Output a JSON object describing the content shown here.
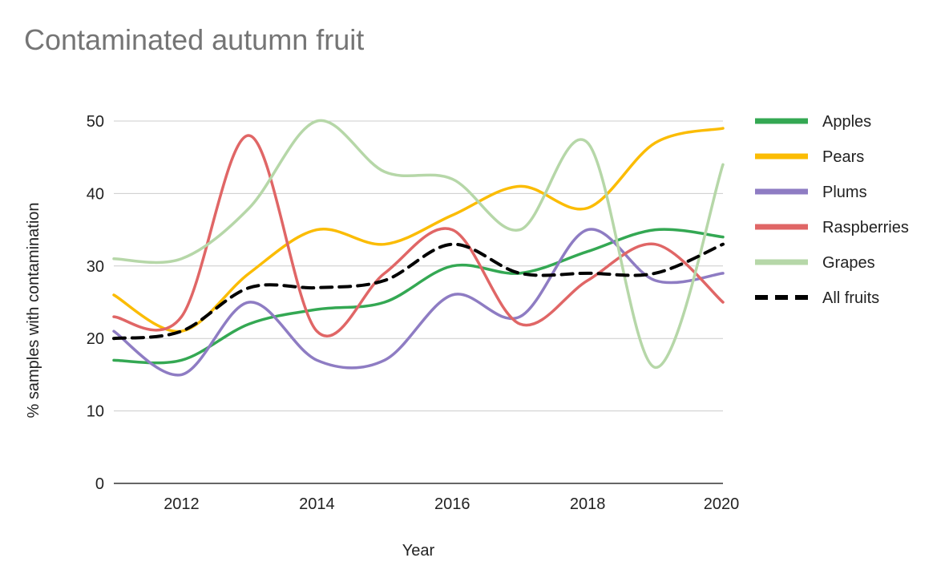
{
  "chart_data": {
    "type": "line",
    "title": "Contaminated autumn fruit",
    "xlabel": "Year",
    "ylabel": "% samples with contamination",
    "x": [
      2011,
      2012,
      2013,
      2014,
      2015,
      2016,
      2017,
      2018,
      2019,
      2020
    ],
    "xlim": [
      2011,
      2020
    ],
    "ylim": [
      0,
      50
    ],
    "xticks": [
      2012,
      2014,
      2016,
      2018,
      2020
    ],
    "yticks": [
      0,
      10,
      20,
      30,
      40,
      50
    ],
    "grid": true,
    "legend_position": "right",
    "series": [
      {
        "name": "Apples",
        "color": "#34a853",
        "dash": false,
        "values": [
          17,
          17,
          22,
          24,
          25,
          30,
          29,
          32,
          35,
          34
        ]
      },
      {
        "name": "Pears",
        "color": "#fbbc04",
        "dash": false,
        "values": [
          26,
          21,
          29,
          35,
          33,
          37,
          41,
          38,
          47,
          49
        ]
      },
      {
        "name": "Plums",
        "color": "#8e7cc3",
        "dash": false,
        "values": [
          21,
          15,
          25,
          17,
          17,
          26,
          23,
          35,
          28,
          29
        ]
      },
      {
        "name": "Raspberries",
        "color": "#e06666",
        "dash": false,
        "values": [
          23,
          23,
          48,
          21,
          29,
          35,
          22,
          28,
          33,
          25
        ]
      },
      {
        "name": "Grapes",
        "color": "#b6d7a8",
        "dash": false,
        "values": [
          31,
          31,
          38,
          50,
          43,
          42,
          35,
          47,
          16,
          44
        ]
      },
      {
        "name": "All fruits",
        "color": "#000000",
        "dash": true,
        "values": [
          20,
          21,
          27,
          27,
          28,
          33,
          29,
          29,
          29,
          33
        ]
      }
    ]
  }
}
